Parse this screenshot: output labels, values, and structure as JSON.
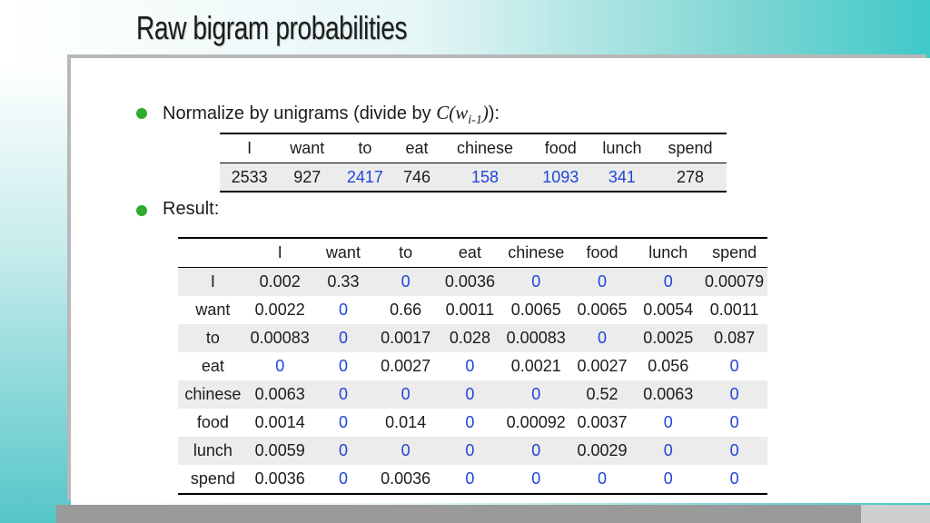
{
  "title": "Raw bigram probabilities",
  "bullets": {
    "b1_text": "Normalize by unigrams (divide by ",
    "b1_formula_c": "C",
    "b1_formula_w": "w",
    "b1_formula_sub": "i-1",
    "b1_tail": "):",
    "b2_text": "Result:"
  },
  "unigram_table": {
    "headers": [
      "I",
      "want",
      "to",
      "eat",
      "chinese",
      "food",
      "lunch",
      "spend"
    ],
    "values": [
      "2533",
      "927",
      "2417",
      "746",
      "158",
      "1093",
      "341",
      "278"
    ]
  },
  "bigram_table": {
    "headers": [
      "",
      "I",
      "want",
      "to",
      "eat",
      "chinese",
      "food",
      "lunch",
      "spend"
    ],
    "rows": [
      [
        "I",
        "0.002",
        "0.33",
        "0",
        "0.0036",
        "0",
        "0",
        "0",
        "0.00079"
      ],
      [
        "want",
        "0.0022",
        "0",
        "0.66",
        "0.0011",
        "0.0065",
        "0.0065",
        "0.0054",
        "0.0011"
      ],
      [
        "to",
        "0.00083",
        "0",
        "0.0017",
        "0.028",
        "0.00083",
        "0",
        "0.0025",
        "0.087"
      ],
      [
        "eat",
        "0",
        "0",
        "0.0027",
        "0",
        "0.0021",
        "0.0027",
        "0.056",
        "0"
      ],
      [
        "chinese",
        "0.0063",
        "0",
        "0",
        "0",
        "0",
        "0.52",
        "0.0063",
        "0"
      ],
      [
        "food",
        "0.0014",
        "0",
        "0.014",
        "0",
        "0.00092",
        "0.0037",
        "0",
        "0"
      ],
      [
        "lunch",
        "0.0059",
        "0",
        "0",
        "0",
        "0",
        "0.0029",
        "0",
        "0"
      ],
      [
        "spend",
        "0.0036",
        "0",
        "0.0036",
        "0",
        "0",
        "0",
        "0",
        "0"
      ]
    ]
  },
  "colors": {
    "accent_blue": "#1f45d8",
    "bullet_green": "#2eaa2e",
    "teal": "#3fc9c9"
  }
}
